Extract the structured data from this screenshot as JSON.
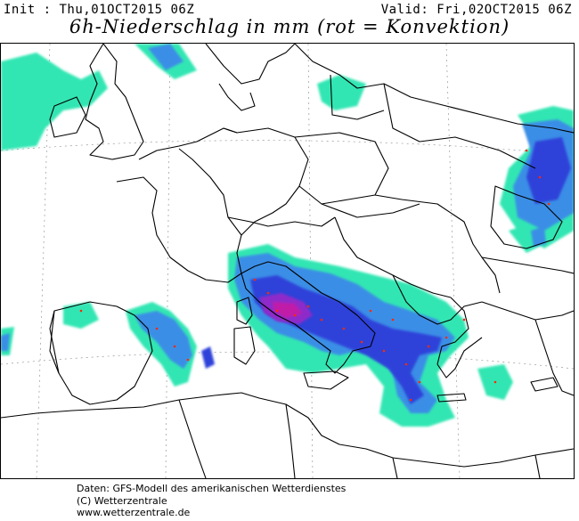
{
  "header": {
    "init": "Init : Thu,01OCT2015 06Z",
    "valid": "Valid: Fri,02OCT2015 06Z",
    "title": "6h-Niederschlag in mm (rot = Konvektion)"
  },
  "colors": {
    "light_precip": "#33e6b3",
    "medium_precip": "#3a8ee6",
    "heavy_precip": "#2f43d9",
    "extreme_precip": "#c01aa8",
    "convection": "#ff2a00",
    "borders": "#000000",
    "grid": "#888888"
  },
  "footer": {
    "line1": "Daten: GFS-Modell des amerikanischen Wetterdienstes",
    "line2": "(C) Wetterzentrale",
    "line3": "www.wetterzentrale.de"
  }
}
